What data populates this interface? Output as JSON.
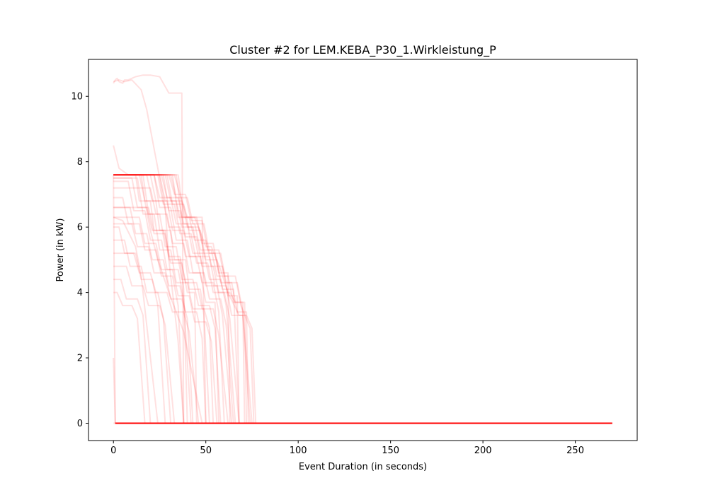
{
  "chart_data": {
    "type": "line",
    "title": "Cluster #2 for LEM.KEBA_P30_1.Wirkleistung_P",
    "xlabel": "Event Duration (in seconds)",
    "ylabel": "Power (in kW)",
    "xlim": [
      -13.5,
      283.5
    ],
    "ylim": [
      -0.53,
      11.13
    ],
    "xticks": [
      0,
      50,
      100,
      150,
      200,
      250
    ],
    "yticks": [
      0,
      2,
      4,
      6,
      8,
      10
    ],
    "grid": false,
    "line_color": "#ff0000",
    "line_alpha": 0.12,
    "series": [
      {
        "x": [
          0,
          1,
          270
        ],
        "y": [
          2.0,
          0,
          0
        ]
      },
      {
        "x": [
          0,
          1,
          270
        ],
        "y": [
          7.6,
          0,
          0
        ]
      },
      {
        "x": [
          0,
          1,
          2,
          3,
          5,
          6,
          8,
          12,
          16,
          20,
          25,
          28,
          30,
          35,
          37,
          38,
          40
        ],
        "y": [
          10.4,
          10.5,
          10.55,
          10.45,
          10.4,
          10.5,
          10.5,
          10.6,
          10.65,
          10.65,
          10.6,
          10.3,
          10.1,
          10.1,
          10.1,
          0,
          0
        ]
      },
      {
        "x": [
          0,
          3,
          6,
          10,
          15,
          18,
          20,
          22,
          24,
          26,
          28,
          30,
          35,
          38
        ],
        "y": [
          10.45,
          10.5,
          10.45,
          10.5,
          10.2,
          9.6,
          9.0,
          8.4,
          7.8,
          7.2,
          6.6,
          5.0,
          2.5,
          0
        ]
      },
      {
        "x": [
          0,
          3,
          8,
          14,
          17,
          20,
          24,
          30,
          38,
          48
        ],
        "y": [
          8.5,
          7.8,
          7.6,
          7.6,
          6.8,
          5.9,
          5.0,
          4.0,
          2.8,
          0
        ]
      },
      {
        "x": [
          0,
          12,
          14,
          20,
          22,
          28,
          30,
          36,
          38,
          40
        ],
        "y": [
          7.6,
          7.6,
          6.8,
          6.8,
          5.9,
          5.9,
          5.0,
          5.0,
          4.1,
          0
        ]
      },
      {
        "x": [
          0,
          15,
          17,
          23,
          25,
          31,
          33,
          39,
          41,
          47,
          49,
          52
        ],
        "y": [
          7.6,
          7.6,
          6.8,
          6.8,
          5.9,
          5.9,
          5.0,
          5.0,
          4.1,
          4.1,
          3.3,
          0
        ]
      },
      {
        "x": [
          0,
          18,
          21,
          27,
          30,
          36,
          39,
          45,
          48,
          54,
          57,
          60
        ],
        "y": [
          7.6,
          7.6,
          6.8,
          6.8,
          6.0,
          6.0,
          5.1,
          5.1,
          4.3,
          4.3,
          3.4,
          0
        ]
      },
      {
        "x": [
          0,
          22,
          25,
          31,
          34,
          40,
          43,
          49,
          52,
          58,
          61,
          66
        ],
        "y": [
          7.6,
          7.6,
          6.9,
          6.9,
          6.1,
          6.1,
          5.2,
          5.2,
          4.4,
          4.4,
          3.6,
          0
        ]
      },
      {
        "x": [
          0,
          26,
          29,
          35,
          38,
          44,
          47,
          53,
          56,
          62,
          65,
          70,
          71
        ],
        "y": [
          7.6,
          7.6,
          6.9,
          6.9,
          6.1,
          6.1,
          5.3,
          5.3,
          4.5,
          4.5,
          3.7,
          3.7,
          0
        ]
      },
      {
        "x": [
          0,
          30,
          33,
          39,
          42,
          48,
          51,
          57,
          60,
          66,
          69,
          74,
          76
        ],
        "y": [
          7.6,
          7.6,
          7.0,
          7.0,
          6.2,
          6.2,
          5.3,
          5.3,
          4.5,
          4.5,
          3.6,
          2.9,
          0
        ]
      },
      {
        "x": [
          0,
          33,
          36,
          40,
          44,
          50,
          53,
          58,
          62,
          68,
          72,
          75,
          77
        ],
        "y": [
          7.6,
          7.6,
          7.0,
          6.3,
          6.3,
          5.4,
          5.4,
          4.7,
          4.0,
          3.3,
          3.3,
          2.9,
          0
        ]
      },
      {
        "x": [
          0,
          10,
          13,
          19,
          22,
          28,
          31,
          37,
          40,
          44,
          45
        ],
        "y": [
          7.5,
          7.5,
          6.6,
          6.6,
          5.8,
          5.8,
          4.9,
          4.9,
          4.0,
          4.0,
          0
        ]
      },
      {
        "x": [
          0,
          8,
          11,
          17,
          20,
          26,
          29,
          35,
          38,
          42
        ],
        "y": [
          7.4,
          7.4,
          6.5,
          6.5,
          5.6,
          5.6,
          4.7,
          4.7,
          3.8,
          0
        ]
      },
      {
        "x": [
          0,
          24,
          27,
          33,
          36,
          42,
          45,
          51,
          54,
          60,
          63,
          68
        ],
        "y": [
          7.6,
          7.6,
          6.7,
          6.7,
          5.8,
          5.8,
          4.9,
          4.9,
          4.0,
          4.0,
          3.2,
          0
        ]
      },
      {
        "x": [
          0,
          28,
          31,
          37,
          40,
          46,
          49,
          55,
          58,
          64,
          67,
          72,
          73
        ],
        "y": [
          7.6,
          7.6,
          6.8,
          6.8,
          6.0,
          6.0,
          5.2,
          5.2,
          4.3,
          4.3,
          3.4,
          3.4,
          0
        ]
      },
      {
        "x": [
          0,
          20,
          23,
          29,
          32,
          38,
          41,
          47,
          50,
          56,
          59,
          64
        ],
        "y": [
          7.6,
          7.6,
          6.8,
          6.8,
          5.9,
          5.9,
          5.1,
          5.1,
          4.2,
          4.2,
          3.3,
          0
        ]
      },
      {
        "x": [
          0,
          5,
          8,
          14,
          17,
          23,
          26,
          32,
          35,
          38
        ],
        "y": [
          6.9,
          6.9,
          6.1,
          6.1,
          5.3,
          5.3,
          4.5,
          4.5,
          3.6,
          0
        ]
      },
      {
        "x": [
          0,
          9,
          12,
          18,
          21,
          27,
          30,
          36,
          39,
          45,
          48,
          50
        ],
        "y": [
          6.6,
          6.6,
          5.8,
          5.8,
          5.0,
          5.0,
          4.2,
          4.2,
          3.4,
          3.4,
          2.6,
          0
        ]
      },
      {
        "x": [
          0,
          14,
          17,
          23,
          26,
          32,
          35,
          41,
          44,
          50,
          53,
          56
        ],
        "y": [
          6.3,
          6.3,
          5.5,
          5.5,
          4.7,
          4.7,
          3.9,
          3.9,
          3.1,
          3.1,
          2.5,
          0
        ]
      },
      {
        "x": [
          0,
          3,
          6,
          12,
          15,
          21,
          24,
          28
        ],
        "y": [
          6.0,
          6.0,
          5.2,
          5.2,
          4.4,
          4.4,
          3.6,
          0
        ]
      },
      {
        "x": [
          0,
          18,
          21,
          27,
          30,
          36,
          39,
          45,
          48,
          54,
          57,
          62
        ],
        "y": [
          6.6,
          6.6,
          5.9,
          5.9,
          5.1,
          5.1,
          4.3,
          4.3,
          3.5,
          3.5,
          2.7,
          0
        ]
      },
      {
        "x": [
          0,
          6,
          9,
          15,
          18,
          24,
          27,
          31
        ],
        "y": [
          5.6,
          5.6,
          4.8,
          4.8,
          4.0,
          4.0,
          3.2,
          0
        ]
      },
      {
        "x": [
          0,
          11,
          14,
          20,
          23,
          29,
          32,
          38,
          41,
          46
        ],
        "y": [
          5.2,
          5.2,
          4.6,
          4.6,
          4.0,
          4.0,
          3.4,
          3.4,
          2.8,
          0
        ]
      },
      {
        "x": [
          0,
          7,
          10,
          16,
          19,
          25,
          28,
          33
        ],
        "y": [
          4.8,
          4.8,
          4.2,
          4.2,
          3.6,
          3.6,
          3.0,
          0
        ]
      },
      {
        "x": [
          0,
          4,
          7,
          13,
          16,
          20
        ],
        "y": [
          4.4,
          4.4,
          3.8,
          3.8,
          3.3,
          0
        ]
      },
      {
        "x": [
          0,
          2,
          5,
          10,
          13,
          17
        ],
        "y": [
          4.0,
          4.0,
          3.6,
          3.6,
          3.2,
          0
        ]
      },
      {
        "x": [
          0,
          5,
          12,
          15,
          24
        ],
        "y": [
          6.3,
          6.2,
          5.4,
          4.5,
          0
        ]
      },
      {
        "x": [
          0,
          25,
          28,
          34,
          37,
          43,
          46,
          52,
          55,
          61,
          64,
          70,
          74
        ],
        "y": [
          7.6,
          7.6,
          6.8,
          6.8,
          6.0,
          6.0,
          5.1,
          5.1,
          4.2,
          4.2,
          3.3,
          3.3,
          0
        ]
      },
      {
        "x": [
          0,
          31,
          34,
          40,
          43,
          49,
          52,
          58,
          61,
          67,
          70,
          75
        ],
        "y": [
          7.6,
          7.6,
          6.9,
          6.9,
          6.1,
          6.1,
          5.2,
          5.2,
          4.3,
          4.3,
          3.4,
          0
        ]
      },
      {
        "x": [
          0,
          32,
          35,
          41,
          44,
          50,
          53,
          59,
          62,
          67,
          68
        ],
        "y": [
          7.6,
          7.6,
          6.3,
          6.3,
          5.6,
          5.6,
          4.8,
          4.8,
          3.9,
          3.9,
          0
        ]
      },
      {
        "x": [
          0,
          34,
          37,
          45,
          48,
          54,
          57,
          62,
          63
        ],
        "y": [
          7.6,
          7.6,
          6.3,
          6.3,
          5.5,
          5.5,
          4.6,
          4.6,
          0
        ]
      },
      {
        "x": [
          0,
          16,
          19,
          25,
          28,
          34,
          37,
          43,
          46,
          52,
          55,
          58
        ],
        "y": [
          7.6,
          7.6,
          6.4,
          6.4,
          5.4,
          5.4,
          4.4,
          4.4,
          3.6,
          3.6,
          2.9,
          0
        ]
      },
      {
        "x": [
          0,
          13,
          16,
          22,
          25,
          31,
          34,
          40,
          43,
          49,
          52,
          54
        ],
        "y": [
          7.5,
          7.5,
          6.4,
          6.4,
          5.3,
          5.3,
          4.3,
          4.3,
          3.5,
          3.5,
          2.9,
          0
        ]
      },
      {
        "x": [
          0,
          27,
          30,
          36,
          39,
          45,
          48,
          54,
          57,
          63,
          66,
          71,
          72
        ],
        "y": [
          7.6,
          7.6,
          6.5,
          6.5,
          5.7,
          5.7,
          4.8,
          4.8,
          4.0,
          4.0,
          3.7,
          3.7,
          0
        ]
      },
      {
        "x": [
          0,
          22,
          25,
          31,
          34,
          40,
          43,
          49,
          52,
          58,
          61,
          65
        ],
        "y": [
          7.6,
          7.6,
          6.6,
          6.6,
          5.6,
          5.6,
          4.6,
          4.6,
          3.8,
          3.8,
          3.0,
          0
        ]
      },
      {
        "x": [
          0,
          29,
          32,
          38,
          41,
          47,
          50,
          56,
          59,
          65,
          68
        ],
        "y": [
          7.6,
          7.6,
          6.7,
          6.7,
          5.9,
          5.9,
          5.0,
          5.0,
          4.1,
          4.1,
          0
        ]
      },
      {
        "x": [
          0,
          35,
          38,
          48,
          50
        ],
        "y": [
          7.6,
          7.6,
          6.3,
          6.3,
          0
        ]
      },
      {
        "x": [
          0,
          10,
          13,
          19,
          22,
          28,
          31,
          37,
          40,
          43
        ],
        "y": [
          6.1,
          6.1,
          5.4,
          5.4,
          4.6,
          4.6,
          3.8,
          3.8,
          3.2,
          0
        ]
      },
      {
        "x": [
          0,
          20,
          23,
          29,
          32,
          38,
          41,
          47,
          50,
          55,
          57
        ],
        "y": [
          7.2,
          7.2,
          6.4,
          6.4,
          5.5,
          5.5,
          4.6,
          4.6,
          3.7,
          3.7,
          0
        ]
      },
      {
        "x": [
          0,
          1,
          270
        ],
        "y": [
          0,
          0,
          0
        ]
      }
    ]
  }
}
